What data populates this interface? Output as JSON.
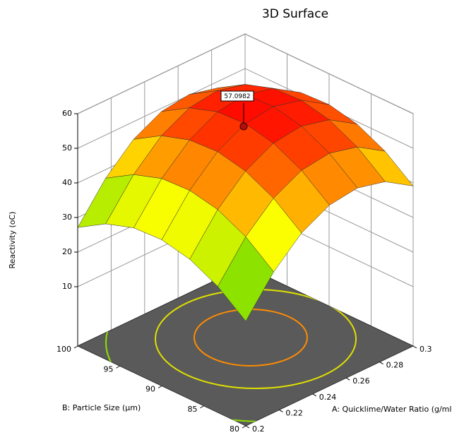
{
  "chart_data": {
    "type": "surface",
    "title": "3D Surface",
    "xlabel": "A: Quicklime/Water Ratio (g/ml)",
    "ylabel": "B: Particle Size (µm)",
    "zlabel": "Reactivity (oC)",
    "annotation": "57.0982",
    "xlim": [
      0.2,
      0.3
    ],
    "ylim": [
      80,
      100
    ],
    "zlim": [
      0,
      60
    ],
    "xticks": [
      0.2,
      0.22,
      0.24,
      0.26,
      0.28,
      0.3
    ],
    "yticks": [
      80,
      85,
      90,
      95,
      100
    ],
    "zticks": [
      10,
      20,
      30,
      40,
      50,
      60
    ],
    "x": [
      0.2,
      0.2167,
      0.2333,
      0.25,
      0.2667,
      0.2833,
      0.3
    ],
    "y": [
      80,
      83.33,
      86.67,
      90,
      93.33,
      96.67,
      100
    ],
    "z": [
      [
        23.1,
        33.5,
        40.9,
        45.1,
        46.2,
        44.2,
        39.1
      ],
      [
        29.3,
        39.8,
        47.1,
        51.3,
        52.4,
        50.4,
        45.3
      ],
      [
        33.3,
        43.8,
        51.1,
        55.3,
        56.4,
        54.4,
        49.3
      ],
      [
        35.1,
        45.5,
        52.9,
        57.1,
        58.2,
        56.2,
        51.1
      ],
      [
        34.7,
        45.1,
        52.4,
        56.7,
        57.8,
        55.8,
        50.7
      ],
      [
        32.0,
        42.4,
        49.8,
        54.0,
        55.1,
        53.1,
        48.0
      ],
      [
        27.1,
        37.5,
        44.9,
        49.1,
        50.2,
        48.2,
        43.1
      ]
    ],
    "grid": true
  }
}
